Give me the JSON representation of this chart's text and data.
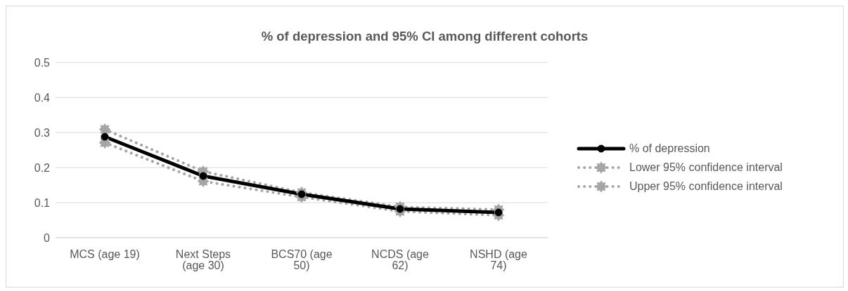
{
  "chart_data": {
    "type": "line",
    "title": "% of depression and 95% CI among different cohorts",
    "categories": [
      "MCS (age 19)",
      "Next Steps (age 30)",
      "BCS70 (age 50)",
      "NCDS (age 62)",
      "NSHD (age 74)"
    ],
    "series": [
      {
        "name": "% of depression",
        "color": "#000000",
        "marker": "circle",
        "line_style": "solid",
        "values": [
          0.288,
          0.176,
          0.124,
          0.082,
          0.072
        ]
      },
      {
        "name": "Lower 95% confidence interval",
        "color": "#a5a5a5",
        "marker": "star",
        "line_style": "dotted",
        "values": [
          0.271,
          0.161,
          0.116,
          0.075,
          0.064
        ]
      },
      {
        "name": "Upper 95% confidence interval",
        "color": "#a5a5a5",
        "marker": "star",
        "line_style": "dotted",
        "values": [
          0.309,
          0.189,
          0.129,
          0.088,
          0.08
        ]
      }
    ],
    "ylim": [
      0,
      0.5
    ],
    "yticks": [
      0,
      0.1,
      0.2,
      0.3,
      0.4,
      0.5
    ],
    "grid": "y",
    "legend": "right"
  }
}
